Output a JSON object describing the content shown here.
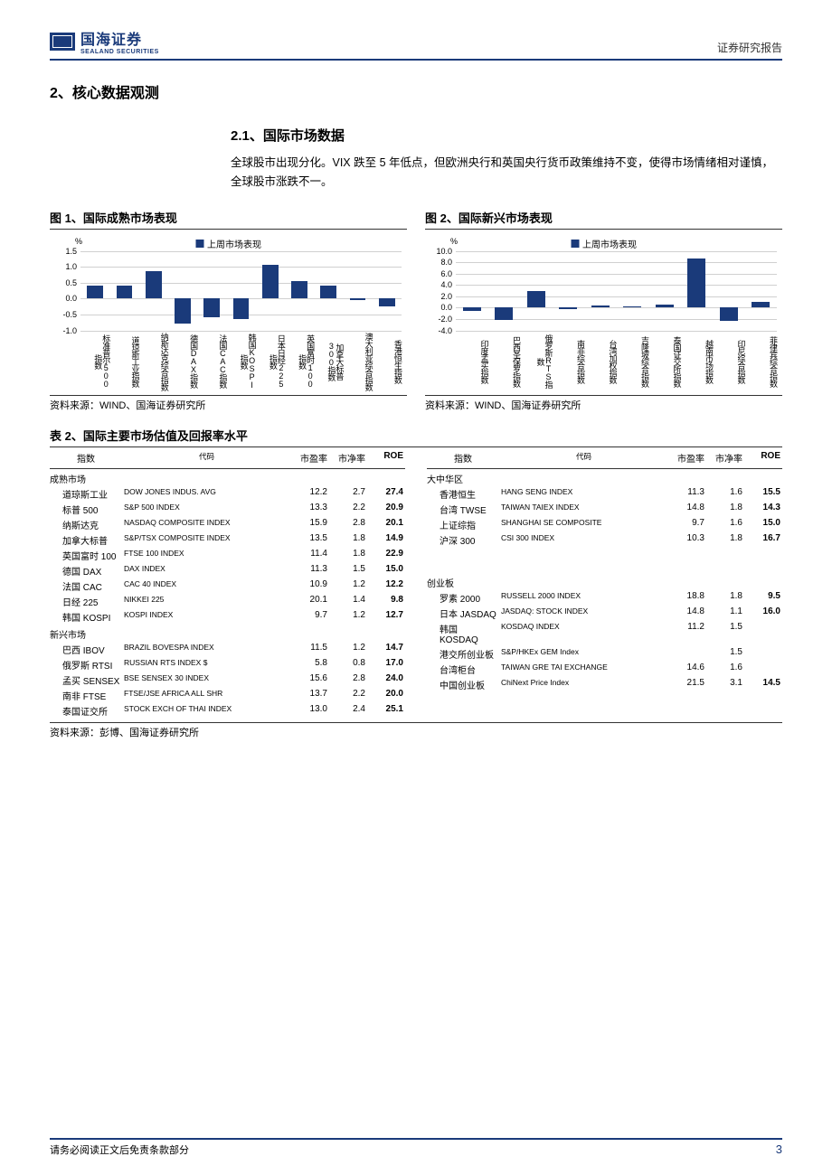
{
  "header": {
    "logo_cn": "国海证券",
    "logo_en": "SEALAND SECURITIES",
    "right": "证券研究报告"
  },
  "section": {
    "h1": "2、核心数据观测",
    "h2": "2.1、国际市场数据",
    "para": "全球股市出现分化。VIX 跌至 5 年低点，但欧洲央行和英国央行货币政策维持不变，使得市场情绪相对谨慎，全球股市涨跌不一。"
  },
  "chart1": {
    "title": "图 1、国际成熟市场表现",
    "legend": "上周市场表现",
    "y_unit": "%",
    "ymin": -1.0,
    "ymax": 1.5,
    "ystep": 0.5,
    "bar_color": "#1a3a7a",
    "grid_color": "#d0d0d0",
    "categories": [
      "标准普尔500指数",
      "道琼斯工业指数",
      "纳斯达克综合指数",
      "德国DAX指数",
      "法国CAC指数",
      "韩国KOSPI指数",
      "日本日经225指数",
      "英国富时100指数",
      "加拿大标普300指数",
      "澳大利亚综合指数",
      "香港恒生指数"
    ],
    "values": [
      0.4,
      0.4,
      0.85,
      -0.8,
      -0.6,
      -0.65,
      1.05,
      0.55,
      0.4,
      -0.05,
      -0.25
    ],
    "source": "资料来源：WIND、国海证券研究所"
  },
  "chart2": {
    "title": "图 2、国际新兴市场表现",
    "legend": "上周市场表现",
    "y_unit": "%",
    "ymin": -4.0,
    "ymax": 10.0,
    "ystep": 2.0,
    "bar_color": "#1a3a7a",
    "grid_color": "#d0d0d0",
    "categories": [
      "印度孟买指数",
      "巴西圣保罗指数",
      "俄罗斯RTS指数",
      "南非综合指数",
      "台湾加权指数",
      "吉隆坡综合指数",
      "泰国证交所指数",
      "越南市场指数",
      "印尼综合指数",
      "菲律宾综合指数"
    ],
    "values": [
      -0.6,
      -2.2,
      3.0,
      -0.3,
      0.3,
      0.15,
      0.6,
      8.7,
      -2.3,
      1.0
    ],
    "source": "资料来源：WIND、国海证券研究所"
  },
  "table": {
    "title": "表 2、国际主要市场估值及回报率水平",
    "headers": {
      "name": "指数",
      "code": "代码",
      "pe": "市盈率",
      "pb": "市净率",
      "roe": "ROE"
    },
    "left": [
      {
        "group": "成熟市场"
      },
      {
        "name": "道琼斯工业",
        "code": "DOW JONES INDUS. AVG",
        "pe": "12.2",
        "pb": "2.7",
        "roe": "27.4"
      },
      {
        "name": "标普 500",
        "code": "S&P 500 INDEX",
        "pe": "13.3",
        "pb": "2.2",
        "roe": "20.9"
      },
      {
        "name": "纳斯达克",
        "code": "NASDAQ COMPOSITE INDEX",
        "pe": "15.9",
        "pb": "2.8",
        "roe": "20.1"
      },
      {
        "name": "加拿大标普",
        "code": "S&P/TSX COMPOSITE INDEX",
        "pe": "13.5",
        "pb": "1.8",
        "roe": "14.9"
      },
      {
        "name": "英国富时 100",
        "code": "FTSE 100 INDEX",
        "pe": "11.4",
        "pb": "1.8",
        "roe": "22.9"
      },
      {
        "name": "德国 DAX",
        "code": "DAX INDEX",
        "pe": "11.3",
        "pb": "1.5",
        "roe": "15.0"
      },
      {
        "name": "法国 CAC",
        "code": "CAC 40 INDEX",
        "pe": "10.9",
        "pb": "1.2",
        "roe": "12.2"
      },
      {
        "name": "日经 225",
        "code": "NIKKEI 225",
        "pe": "20.1",
        "pb": "1.4",
        "roe": "9.8"
      },
      {
        "name": "韩国 KOSPI",
        "code": "KOSPI INDEX",
        "pe": "9.7",
        "pb": "1.2",
        "roe": "12.7"
      },
      {
        "group": "新兴市场"
      },
      {
        "name": "巴西 IBOV",
        "code": "BRAZIL BOVESPA INDEX",
        "pe": "11.5",
        "pb": "1.2",
        "roe": "14.7"
      },
      {
        "name": "俄罗斯 RTSI",
        "code": "RUSSIAN RTS INDEX $",
        "pe": "5.8",
        "pb": "0.8",
        "roe": "17.0"
      },
      {
        "name": "孟买 SENSEX",
        "code": "BSE SENSEX 30 INDEX",
        "pe": "15.6",
        "pb": "2.8",
        "roe": "24.0"
      },
      {
        "name": "南非 FTSE",
        "code": "FTSE/JSE AFRICA ALL SHR",
        "pe": "13.7",
        "pb": "2.2",
        "roe": "20.0"
      },
      {
        "name": "泰国证交所",
        "code": "STOCK EXCH OF THAI INDEX",
        "pe": "13.0",
        "pb": "2.4",
        "roe": "25.1"
      }
    ],
    "right": [
      {
        "group": "大中华区"
      },
      {
        "name": "香港恒生",
        "code": "HANG SENG INDEX",
        "pe": "11.3",
        "pb": "1.6",
        "roe": "15.5"
      },
      {
        "name": "台湾 TWSE",
        "code": "TAIWAN TAIEX INDEX",
        "pe": "14.8",
        "pb": "1.8",
        "roe": "14.3"
      },
      {
        "name": "上证综指",
        "code": "SHANGHAI SE COMPOSITE",
        "pe": "9.7",
        "pb": "1.6",
        "roe": "15.0"
      },
      {
        "name": "沪深 300",
        "code": "CSI 300 INDEX",
        "pe": "10.3",
        "pb": "1.8",
        "roe": "16.7"
      },
      {
        "blank": true
      },
      {
        "blank": true
      },
      {
        "group": "创业板"
      },
      {
        "name": "罗素 2000",
        "code": "RUSSELL 2000 INDEX",
        "pe": "18.8",
        "pb": "1.8",
        "roe": "9.5"
      },
      {
        "name": "日本 JASDAQ",
        "code": "JASDAQ: STOCK INDEX",
        "pe": "14.8",
        "pb": "1.1",
        "roe": "16.0"
      },
      {
        "name": "韩国 KOSDAQ",
        "code": "KOSDAQ INDEX",
        "pe": "11.2",
        "pb": "1.5",
        "roe": ""
      },
      {
        "name": "港交所创业板",
        "code": "S&P/HKEx GEM Index",
        "pe": "",
        "pb": "1.5",
        "roe": ""
      },
      {
        "name": "台湾柜台",
        "code": "TAIWAN GRE TAI EXCHANGE",
        "pe": "14.6",
        "pb": "1.6",
        "roe": ""
      },
      {
        "name": "中国创业板",
        "code": "ChiNext Price Index",
        "pe": "21.5",
        "pb": "3.1",
        "roe": "14.5"
      }
    ],
    "source": "资料来源：彭博、国海证券研究所"
  },
  "footer": {
    "disclaimer": "请务必阅读正文后免责条款部分",
    "page": "3"
  }
}
